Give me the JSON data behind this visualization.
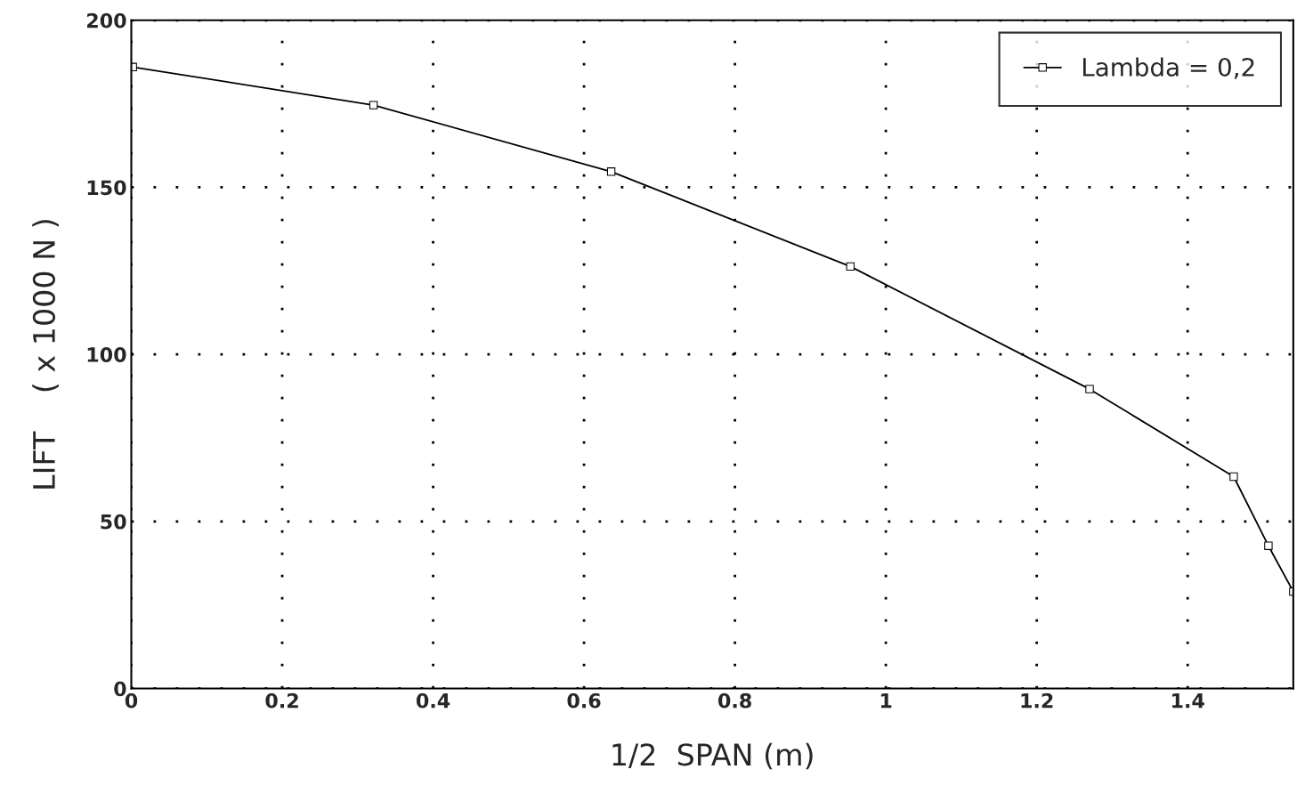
{
  "chart_data": {
    "type": "line",
    "xlabel": "1/2  SPAN (m)",
    "ylabel": "LIFT    ( x 1000 N )",
    "x": [
      0.002,
      0.321,
      0.636,
      0.953,
      1.27,
      1.461,
      1.507,
      1.54
    ],
    "series": [
      {
        "name": "Lambda = 0,2",
        "color": "#000000",
        "values": [
          186,
          174.6,
          154.7,
          126.3,
          89.6,
          63.4,
          42.7,
          29
        ]
      }
    ],
    "xlim": [
      0,
      1.54
    ],
    "ylim": [
      0,
      200
    ],
    "xticks": [
      0,
      0.2,
      0.4,
      0.6,
      0.8,
      1,
      1.2,
      1.4
    ],
    "yticks": [
      0,
      50,
      100,
      150,
      200
    ],
    "grid": true,
    "line_style": "solid",
    "marker": "square",
    "legend": "top right"
  }
}
